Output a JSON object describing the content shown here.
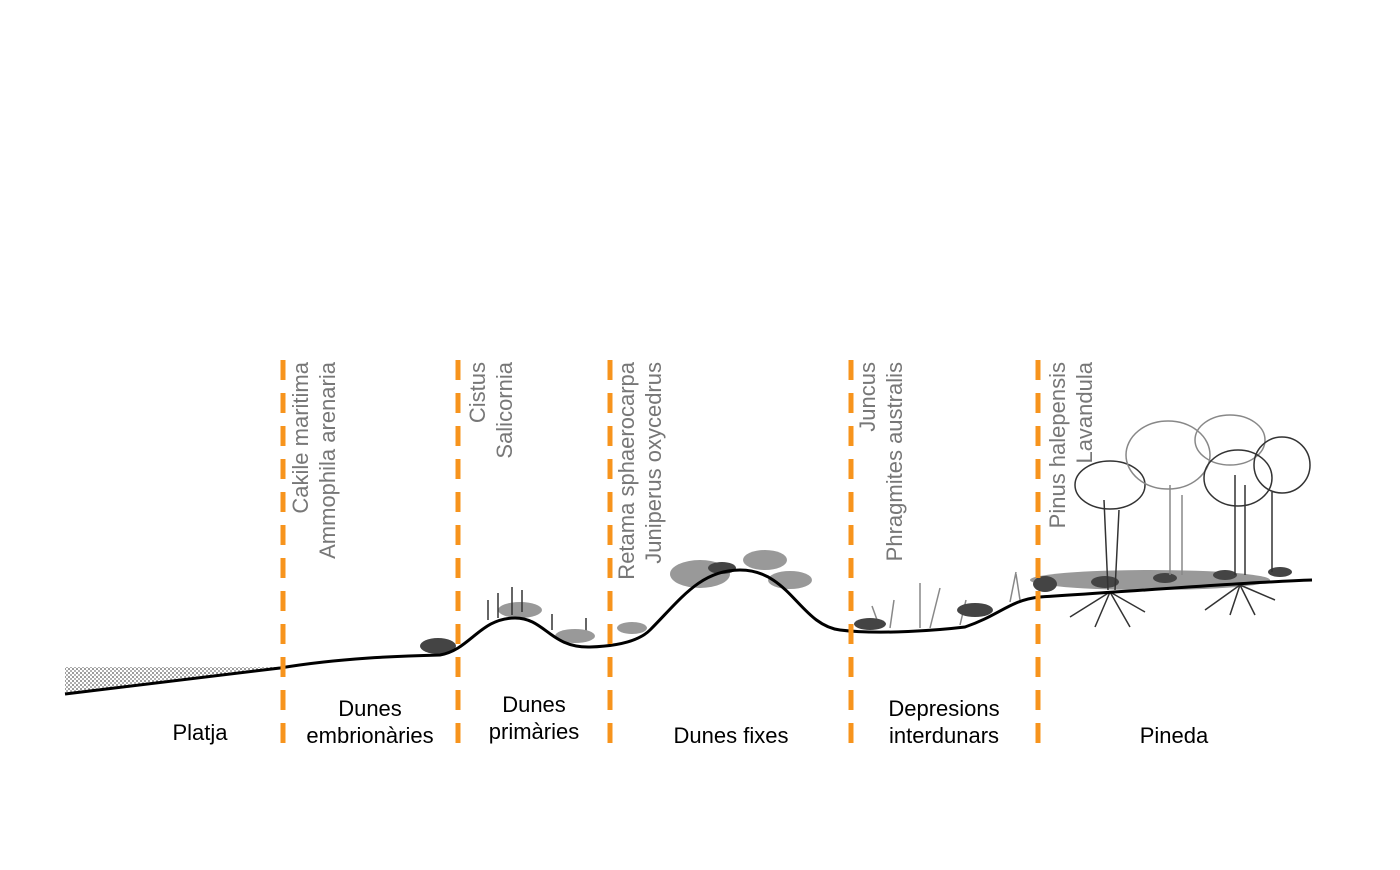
{
  "zones": [
    {
      "lines": [
        "Platja"
      ]
    },
    {
      "lines": [
        "Dunes",
        "embrionàries"
      ]
    },
    {
      "lines": [
        "Dunes",
        "primàries"
      ]
    },
    {
      "lines": [
        "Dunes fixes"
      ]
    },
    {
      "lines": [
        "Depresions",
        "interdunars"
      ]
    },
    {
      "lines": [
        "Pineda"
      ]
    }
  ],
  "species": [
    [
      "Cakile maritima",
      "Ammophila arenaria"
    ],
    [
      "Cistus",
      "Salicornia"
    ],
    [
      "Retama sphaerocarpa",
      "Juniperus oxycedrus"
    ],
    [
      "Juncus",
      "Phragmites australis"
    ],
    [
      "Pinus halepensis",
      "Lavandula"
    ]
  ]
}
